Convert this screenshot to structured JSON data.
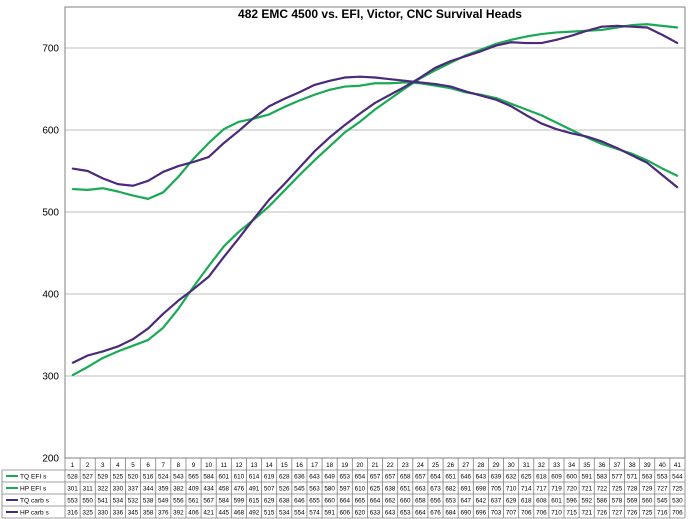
{
  "chart_data": {
    "type": "line",
    "title": "482 EMC 4500 vs. EFI, Victor, CNC Survival Heads",
    "xlabel": "",
    "ylabel": "",
    "ylim": [
      200,
      750
    ],
    "yticks": [
      200,
      300,
      400,
      500,
      600,
      700
    ],
    "grid": true,
    "legend": "table-below",
    "categories": [
      "1",
      "2",
      "3",
      "4",
      "5",
      "6",
      "7",
      "8",
      "9",
      "10",
      "11",
      "12",
      "13",
      "14",
      "15",
      "16",
      "17",
      "18",
      "19",
      "20",
      "21",
      "22",
      "23",
      "24",
      "25",
      "26",
      "27",
      "28",
      "29",
      "30",
      "31",
      "32",
      "33",
      "34",
      "35",
      "36",
      "37",
      "38",
      "39",
      "40",
      "41"
    ],
    "series": [
      {
        "name": "TQ EFI s",
        "color": "#1aaa55",
        "values": [
          528,
          527,
          529,
          525,
          520,
          516,
          524,
          543,
          565,
          584,
          601,
          610,
          614,
          619,
          628,
          636,
          643,
          649,
          653,
          654,
          657,
          657,
          658,
          657,
          654,
          651,
          646,
          643,
          639,
          632,
          625,
          618,
          609,
          600,
          591,
          583,
          577,
          571,
          563,
          553,
          544
        ]
      },
      {
        "name": "HP EFI s",
        "color": "#1aaa55",
        "values": [
          301,
          311,
          322,
          330,
          337,
          344,
          359,
          382,
          409,
          434,
          458,
          476,
          491,
          507,
          526,
          545,
          563,
          580,
          597,
          610,
          625,
          638,
          651,
          663,
          673,
          682,
          691,
          698,
          705,
          710,
          714,
          717,
          719,
          720,
          721,
          722,
          725,
          728,
          729,
          727,
          725
        ]
      },
      {
        "name": "TQ carb s",
        "color": "#4b2a7a",
        "values": [
          553,
          550,
          541,
          534,
          532,
          538,
          549,
          556,
          561,
          567,
          584,
          599,
          615,
          629,
          638,
          646,
          655,
          660,
          664,
          665,
          664,
          662,
          660,
          658,
          656,
          653,
          647,
          642,
          637,
          629,
          618,
          608,
          601,
          596,
          592,
          586,
          578,
          569,
          560,
          545,
          530
        ]
      },
      {
        "name": "HP carb s",
        "color": "#4b2a7a",
        "values": [
          316,
          325,
          330,
          336,
          345,
          358,
          376,
          392,
          406,
          421,
          445,
          468,
          492,
          515,
          534,
          554,
          574,
          591,
          606,
          620,
          633,
          643,
          653,
          664,
          676,
          684,
          690,
          696,
          703,
          707,
          706,
          706,
          710,
          715,
          721,
          726,
          727,
          726,
          725,
          716,
          706
        ]
      }
    ]
  }
}
